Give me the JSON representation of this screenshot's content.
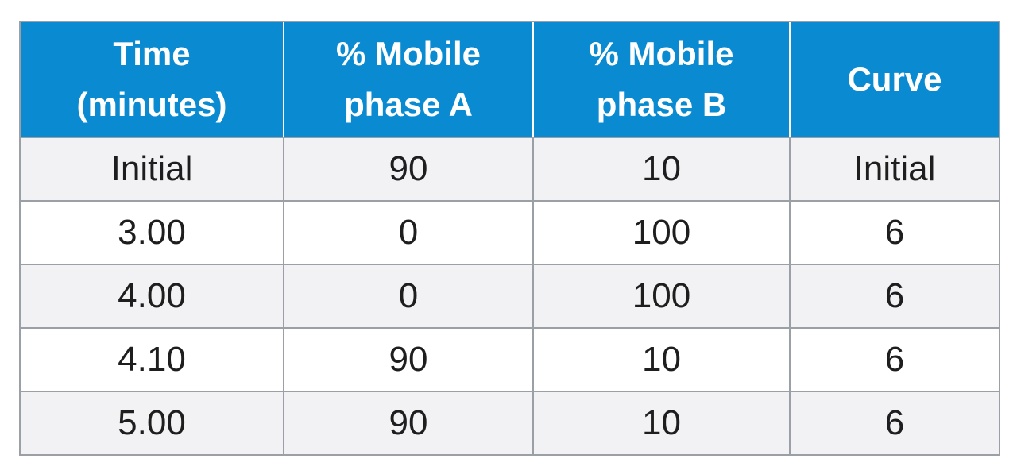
{
  "headers": [
    {
      "line1": "Time",
      "line2": "(minutes)"
    },
    {
      "line1": "% Mobile",
      "line2": "phase A"
    },
    {
      "line1": "% Mobile",
      "line2": "phase B"
    },
    {
      "line1": "Curve",
      "line2": ""
    }
  ],
  "rows": [
    [
      "Initial",
      "90",
      "10",
      "Initial"
    ],
    [
      "3.00",
      "0",
      "100",
      "6"
    ],
    [
      "4.00",
      "0",
      "100",
      "6"
    ],
    [
      "4.10",
      "90",
      "10",
      "6"
    ],
    [
      "5.00",
      "90",
      "10",
      "6"
    ]
  ],
  "colors": {
    "header_bg": "#0a8bd1",
    "header_text": "#ffffff",
    "shaded_row_bg": "#f2f2f4",
    "border": "#9aa0a6"
  }
}
